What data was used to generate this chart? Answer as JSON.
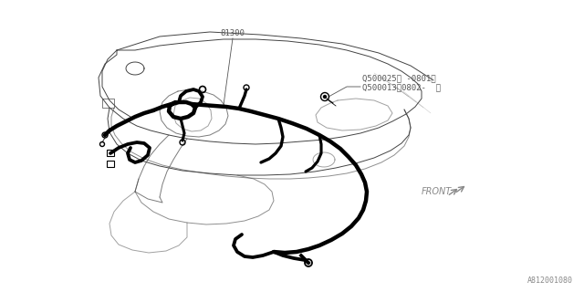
{
  "bg_color": "#ffffff",
  "line_color": "#000000",
  "thick_line_color": "#000000",
  "panel_color": "#444444",
  "label_81300": "81300",
  "label_q1": "Q500025〈 -0801〉",
  "label_q2": "Q500013〈0802-  〉",
  "label_front": "FRONT",
  "label_part_number": "A812001080",
  "thin_lw": 0.7,
  "thick_lw": 3.2,
  "font_size_small": 6.5,
  "font_size_part": 6.0
}
